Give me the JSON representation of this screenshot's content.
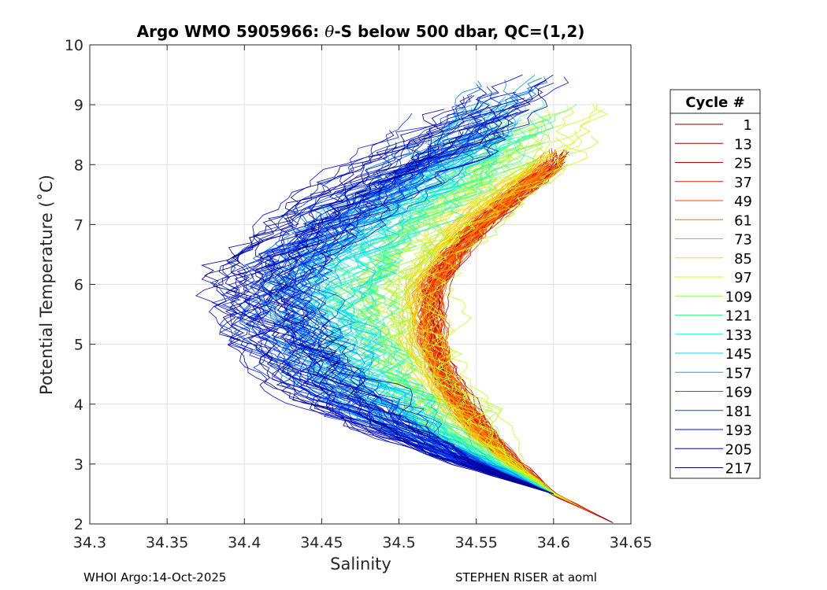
{
  "chart_data": {
    "type": "line",
    "title_prefix": "Argo WMO 5905966: ",
    "title_theta": "θ",
    "title_suffix": "-S below 500 dbar,  QC=(1,2)",
    "xlabel": "Salinity",
    "ylabel": "Potential Temperature (˚C)",
    "xlim": [
      34.3,
      34.65
    ],
    "ylim": [
      2,
      10
    ],
    "x_ticks": [
      34.3,
      34.35,
      34.4,
      34.45,
      34.5,
      34.55,
      34.6,
      34.65
    ],
    "x_tick_labels": [
      "34.3",
      "34.35",
      "34.4",
      "34.45",
      "34.5",
      "34.55",
      "34.6",
      "34.65"
    ],
    "y_ticks": [
      2,
      3,
      4,
      5,
      6,
      7,
      8,
      9,
      10
    ],
    "y_tick_labels": [
      "2",
      "3",
      "4",
      "5",
      "6",
      "7",
      "8",
      "9",
      "10"
    ],
    "grid": true,
    "legend_title": "Cycle #",
    "legend_position": "right",
    "series": [
      {
        "name": "1",
        "color": "#800000"
      },
      {
        "name": "13",
        "color": "#9b0000"
      },
      {
        "name": "25",
        "color": "#bf0000"
      },
      {
        "name": "37",
        "color": "#e31a00"
      },
      {
        "name": "49",
        "color": "#ff3c00"
      },
      {
        "name": "61",
        "color": "#ff6a00"
      },
      {
        "name": "73",
        "color": "#ffa000"
      },
      {
        "name": "85",
        "color": "#ffd500"
      },
      {
        "name": "97",
        "color": "#d2ff10"
      },
      {
        "name": "109",
        "color": "#8cff50"
      },
      {
        "name": "121",
        "color": "#46ff8c"
      },
      {
        "name": "133",
        "color": "#10ffcf"
      },
      {
        "name": "145",
        "color": "#00d8ff"
      },
      {
        "name": "157",
        "color": "#00a8ff"
      },
      {
        "name": "169",
        "color": "#0070ff"
      },
      {
        "name": "181",
        "color": "#0040ff"
      },
      {
        "name": "193",
        "color": "#0010e0"
      },
      {
        "name": "205",
        "color": "#0000b0"
      },
      {
        "name": "217",
        "color": "#000080"
      }
    ],
    "curve_shape": {
      "deep_start": [
        34.6,
        2.5
      ],
      "note": "theta-S profiles form a C-shaped envelope: salinity minimum near 5.8-6 C, warm high-salinity branch near 8-10 C"
    }
  },
  "footer": {
    "left": "WHOI Argo:14-Oct-2025",
    "right": "STEPHEN RISER at aoml"
  }
}
